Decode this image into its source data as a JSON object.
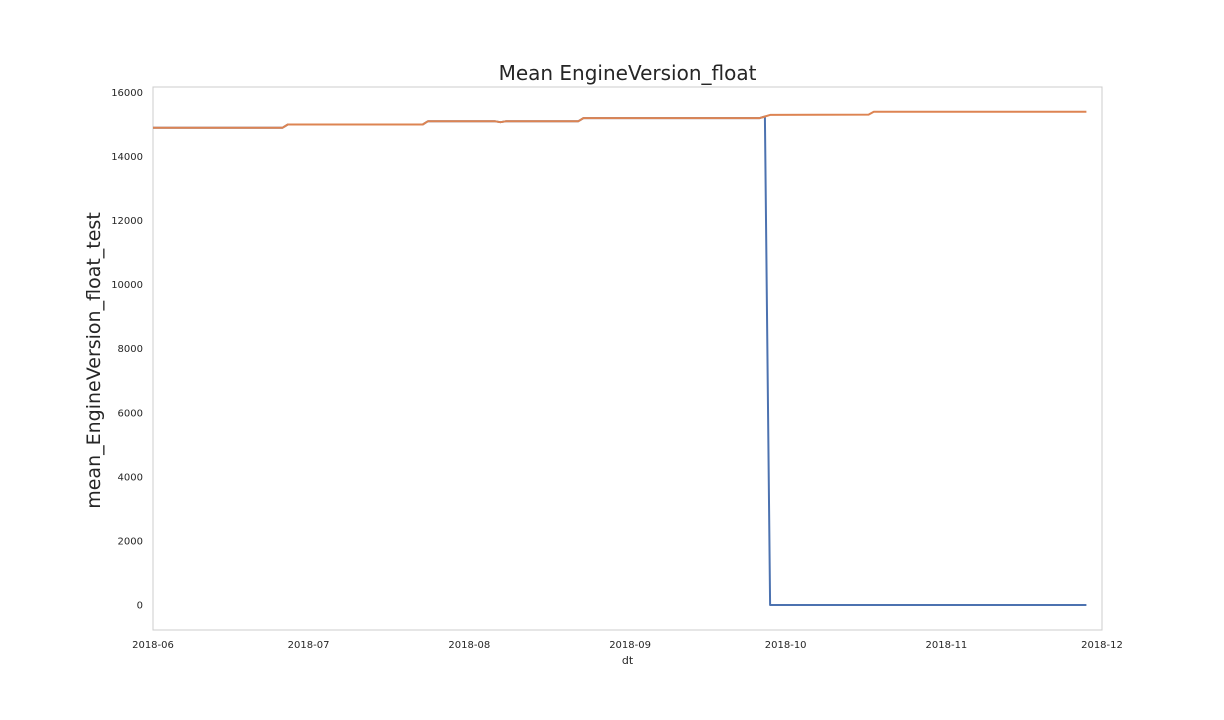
{
  "chart_data": {
    "type": "line",
    "title": "Mean EngineVersion_float",
    "xlabel": "dt",
    "ylabel": "mean_EngineVersion_float_test",
    "x_tick_labels": [
      "2018-06",
      "2018-07",
      "2018-08",
      "2018-09",
      "2018-10",
      "2018-11",
      "2018-12"
    ],
    "x_ticks": [
      "2018-06-01",
      "2018-07-01",
      "2018-08-01",
      "2018-09-01",
      "2018-10-01",
      "2018-11-01",
      "2018-12-01"
    ],
    "y_ticks": [
      0,
      2000,
      4000,
      6000,
      8000,
      10000,
      12000,
      14000,
      16000
    ],
    "y_tick_labels": [
      "0",
      "2000",
      "4000",
      "6000",
      "8000",
      "10000",
      "12000",
      "14000",
      "16000"
    ],
    "xlim": [
      "2018-06-01",
      "2018-12-01"
    ],
    "ylim": [
      -780,
      16170
    ],
    "grid": false,
    "legend": "none",
    "colors": {
      "series_blue": "#4c72b0",
      "series_orange": "#dd8452",
      "frame": "#cccccc"
    },
    "series": [
      {
        "color": "#4c72b0",
        "points": [
          [
            "2018-06-01",
            14900
          ],
          [
            "2018-06-26",
            14900
          ],
          [
            "2018-06-27",
            15000
          ],
          [
            "2018-07-23",
            15000
          ],
          [
            "2018-07-24",
            15100
          ],
          [
            "2018-08-06",
            15100
          ],
          [
            "2018-08-07",
            15070
          ],
          [
            "2018-08-08",
            15100
          ],
          [
            "2018-08-22",
            15100
          ],
          [
            "2018-08-23",
            15200
          ],
          [
            "2018-09-26",
            15200
          ],
          [
            "2018-09-27",
            15250
          ],
          [
            "2018-09-28",
            0
          ],
          [
            "2018-11-28",
            0
          ]
        ]
      },
      {
        "color": "#dd8452",
        "points": [
          [
            "2018-06-01",
            14900
          ],
          [
            "2018-06-26",
            14900
          ],
          [
            "2018-06-27",
            15000
          ],
          [
            "2018-07-23",
            15000
          ],
          [
            "2018-07-24",
            15100
          ],
          [
            "2018-08-06",
            15100
          ],
          [
            "2018-08-07",
            15070
          ],
          [
            "2018-08-08",
            15100
          ],
          [
            "2018-08-22",
            15100
          ],
          [
            "2018-08-23",
            15200
          ],
          [
            "2018-09-26",
            15200
          ],
          [
            "2018-09-27",
            15250
          ],
          [
            "2018-09-28",
            15300
          ],
          [
            "2018-10-17",
            15310
          ],
          [
            "2018-10-18",
            15400
          ],
          [
            "2018-11-28",
            15400
          ]
        ]
      }
    ]
  }
}
